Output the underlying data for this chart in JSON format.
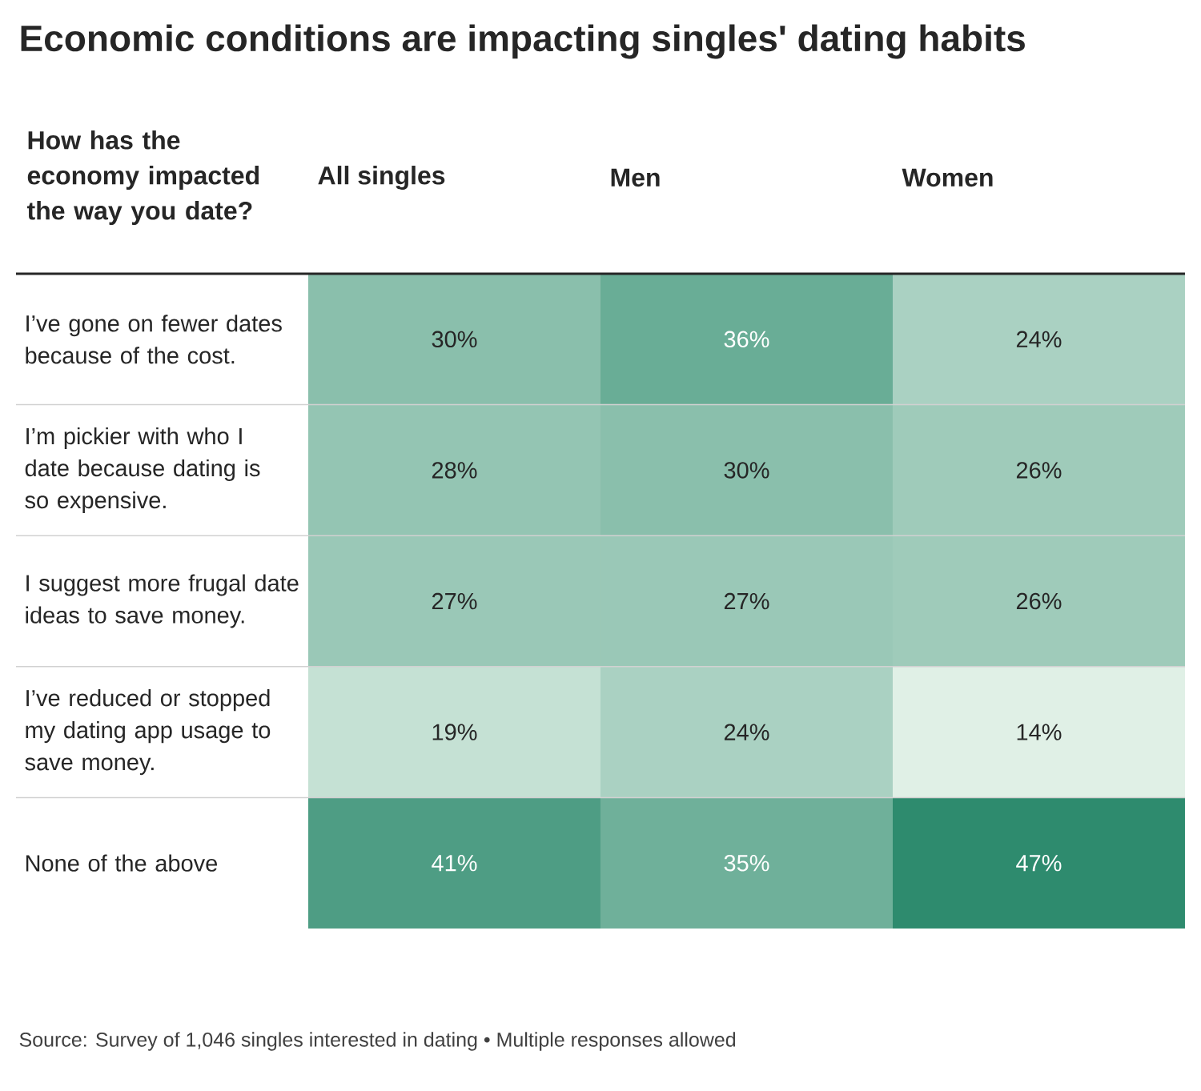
{
  "chart_data": {
    "type": "heatmap",
    "title": "Economic conditions are impacting singles' dating habits",
    "ylabel": "How has the economy impacted the way you date?",
    "categories": [
      "All singles",
      "Men",
      "Women"
    ],
    "y_categories": [
      "I’ve gone on fewer dates because of the cost.",
      "I’m pickier with who I date because dating is so expensive.",
      "I suggest more frugal date ideas to save money.",
      "I’ve reduced or stopped my dating app usage to save money.",
      "None of the above"
    ],
    "cells": [
      [
        30,
        36,
        24
      ],
      [
        28,
        30,
        26
      ],
      [
        27,
        27,
        26
      ],
      [
        19,
        24,
        14
      ],
      [
        41,
        35,
        47
      ]
    ],
    "cell_labels": [
      [
        "30%",
        "36%",
        "24%"
      ],
      [
        "28%",
        "30%",
        "26%"
      ],
      [
        "27%",
        "27%",
        "26%"
      ],
      [
        "19%",
        "24%",
        "14%"
      ],
      [
        "41%",
        "35%",
        "47%"
      ]
    ],
    "annotations": [
      "Source: Survey of 1,046 singles interested in dating • Multiple responses allowed"
    ]
  }
}
